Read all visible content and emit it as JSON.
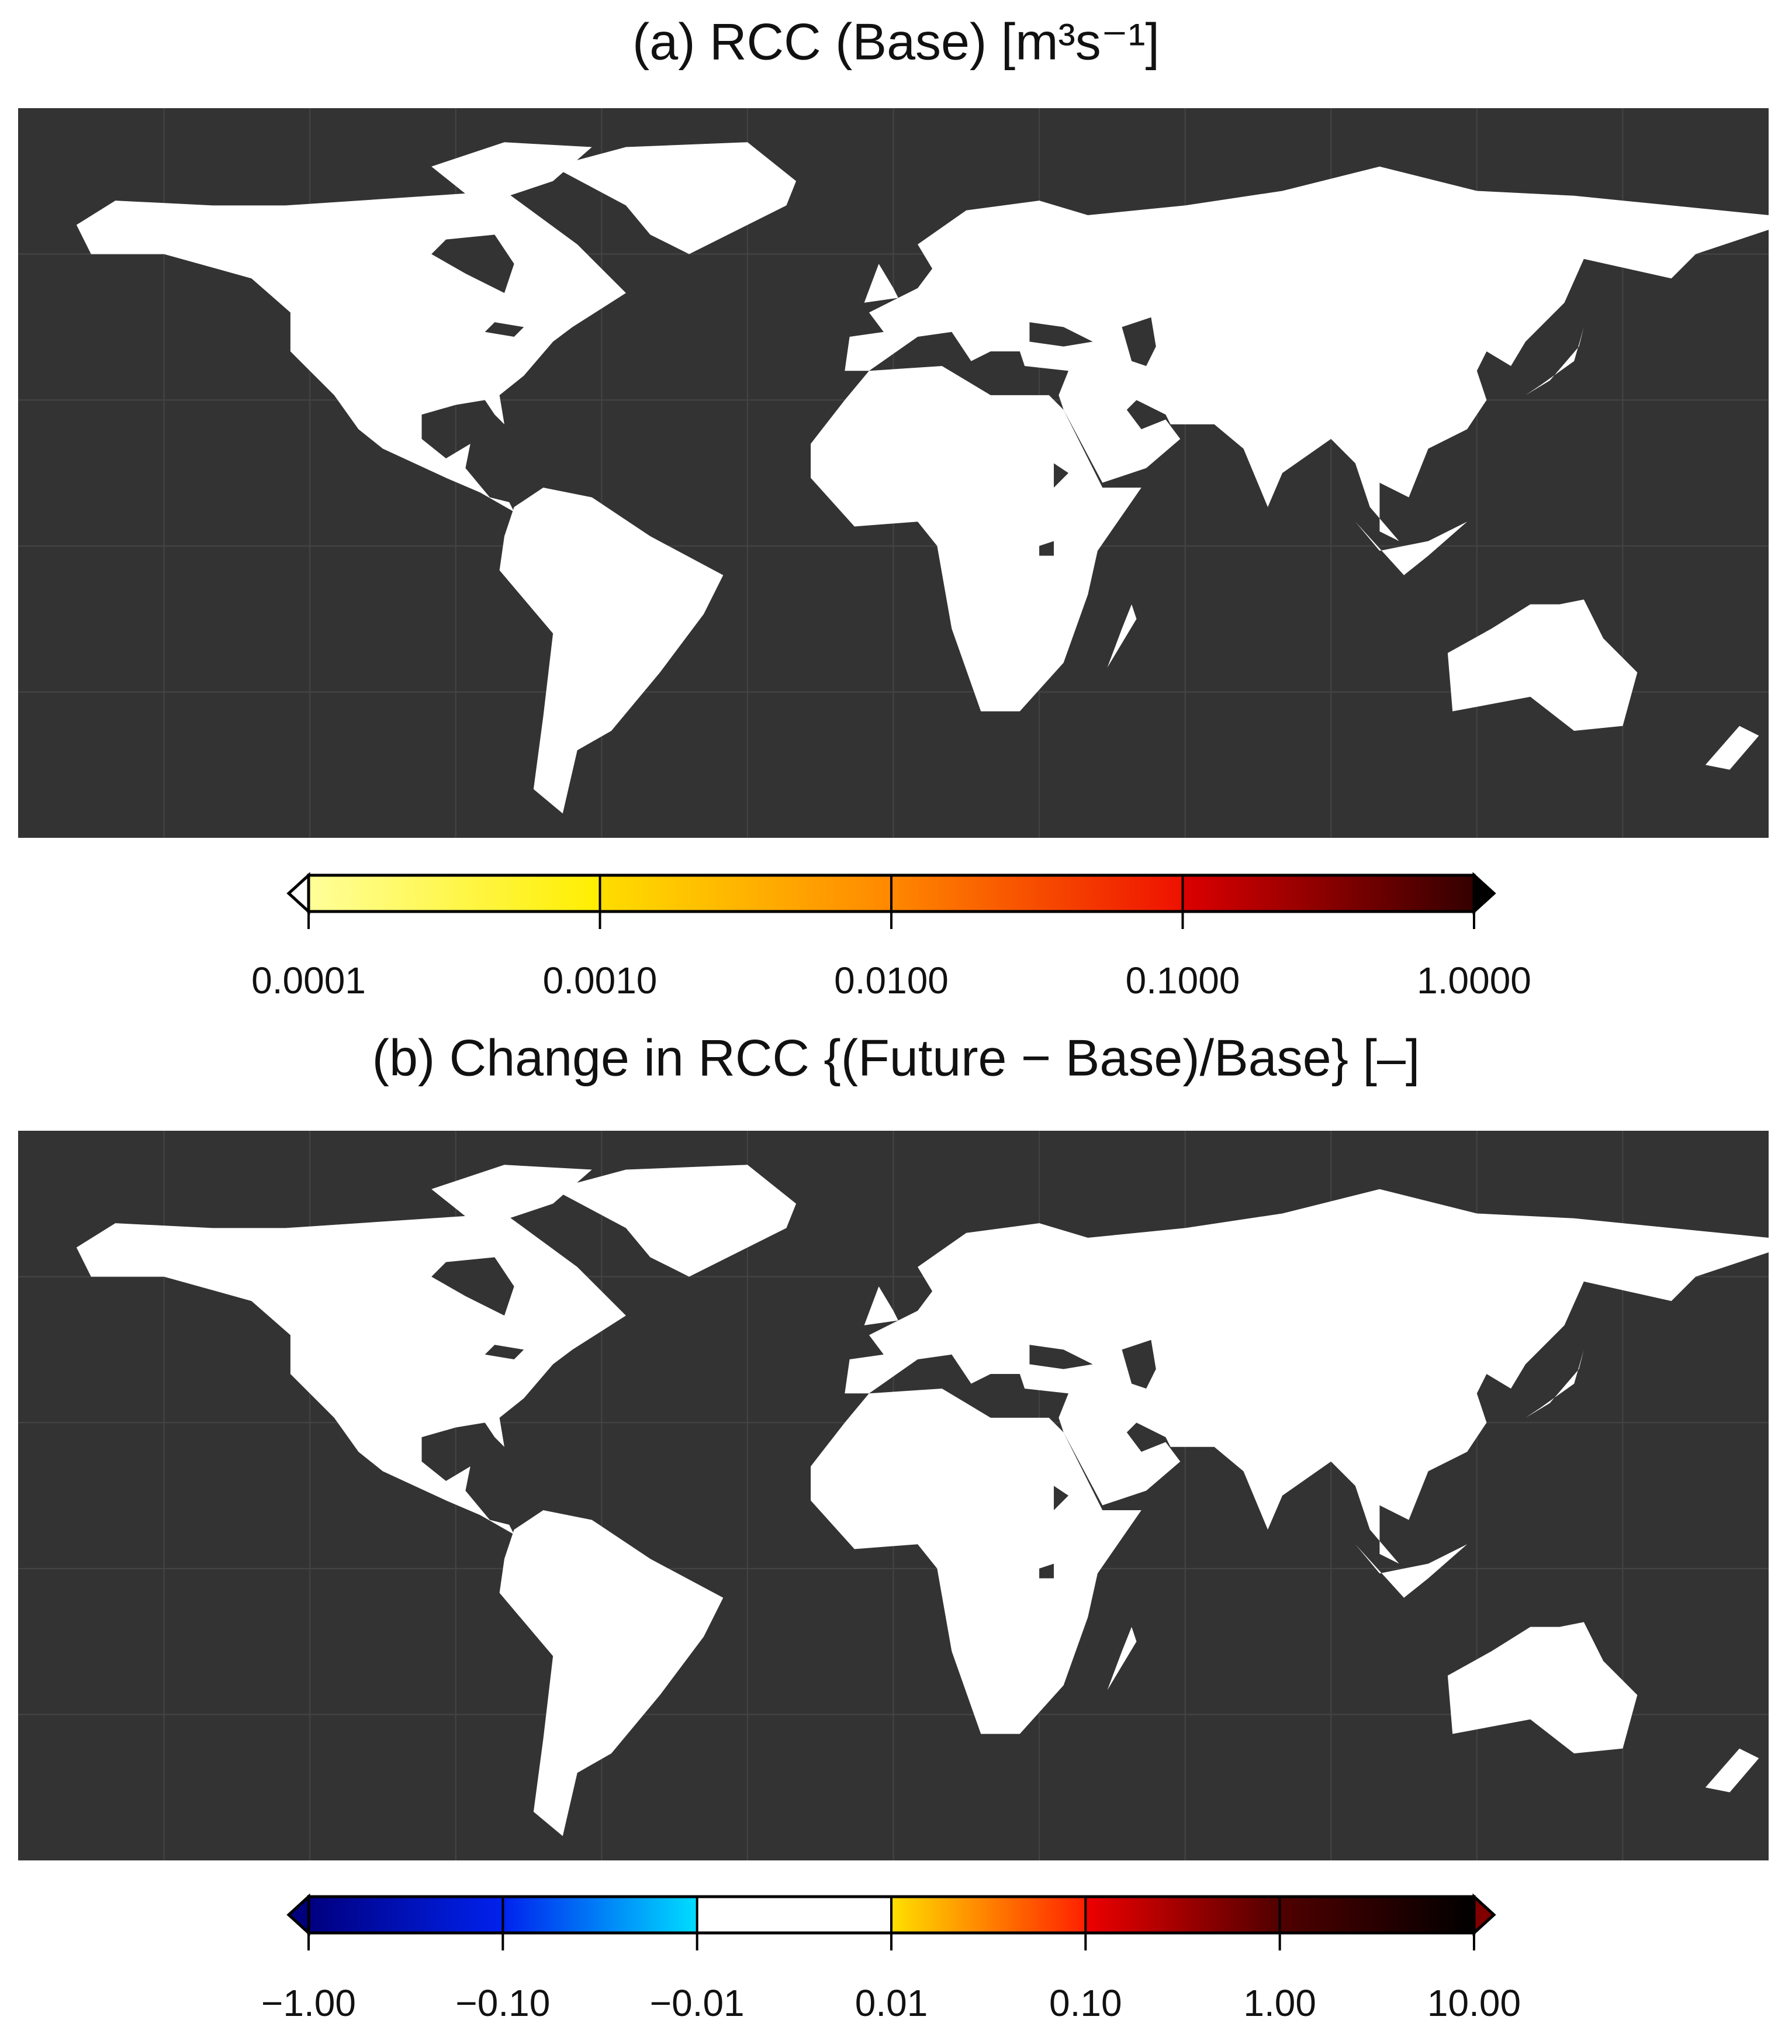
{
  "panels": [
    {
      "title": "(a) RCC (Base) [m³s⁻¹]",
      "colorbar": {
        "scale": "log",
        "under": "#ffffff",
        "over": "#000000",
        "segments": [
          [
            "#ffff99",
            "#ffee00"
          ],
          [
            "#ffdd00",
            "#ff8800"
          ],
          [
            "#ff8800",
            "#ee1100"
          ],
          [
            "#dd0000",
            "#330000"
          ]
        ],
        "ticks": [
          {
            "value": 0.0001,
            "label": "0.0001"
          },
          {
            "value": 0.001,
            "label": "0.0010"
          },
          {
            "value": 0.01,
            "label": "0.0100"
          },
          {
            "value": 0.1,
            "label": "0.1000"
          },
          {
            "value": 1,
            "label": "1.0000"
          }
        ]
      }
    },
    {
      "title": "(b) Change in RCC {(Future − Base)/Base} [–]",
      "colorbar": {
        "scale": "symlog",
        "under": "#00007f",
        "over": "#800000",
        "segments": [
          [
            "#00007f",
            "#0022ee"
          ],
          [
            "#0022ee",
            "#00ddff"
          ],
          [
            "#ffffff",
            "#ffffff"
          ],
          [
            "#ffe000",
            "#ff2000"
          ],
          [
            "#ee0000",
            "#500000"
          ],
          [
            "#500000",
            "#000000"
          ]
        ],
        "ticks": [
          {
            "value": -1,
            "label": "−1.00"
          },
          {
            "value": -0.1,
            "label": "−0.10"
          },
          {
            "value": -0.01,
            "label": "−0.01"
          },
          {
            "value": 0.01,
            "label": "0.01"
          },
          {
            "value": 0.1,
            "label": "0.10"
          },
          {
            "value": 1,
            "label": "1.00"
          },
          {
            "value": 10,
            "label": "10.00"
          }
        ]
      }
    }
  ]
}
